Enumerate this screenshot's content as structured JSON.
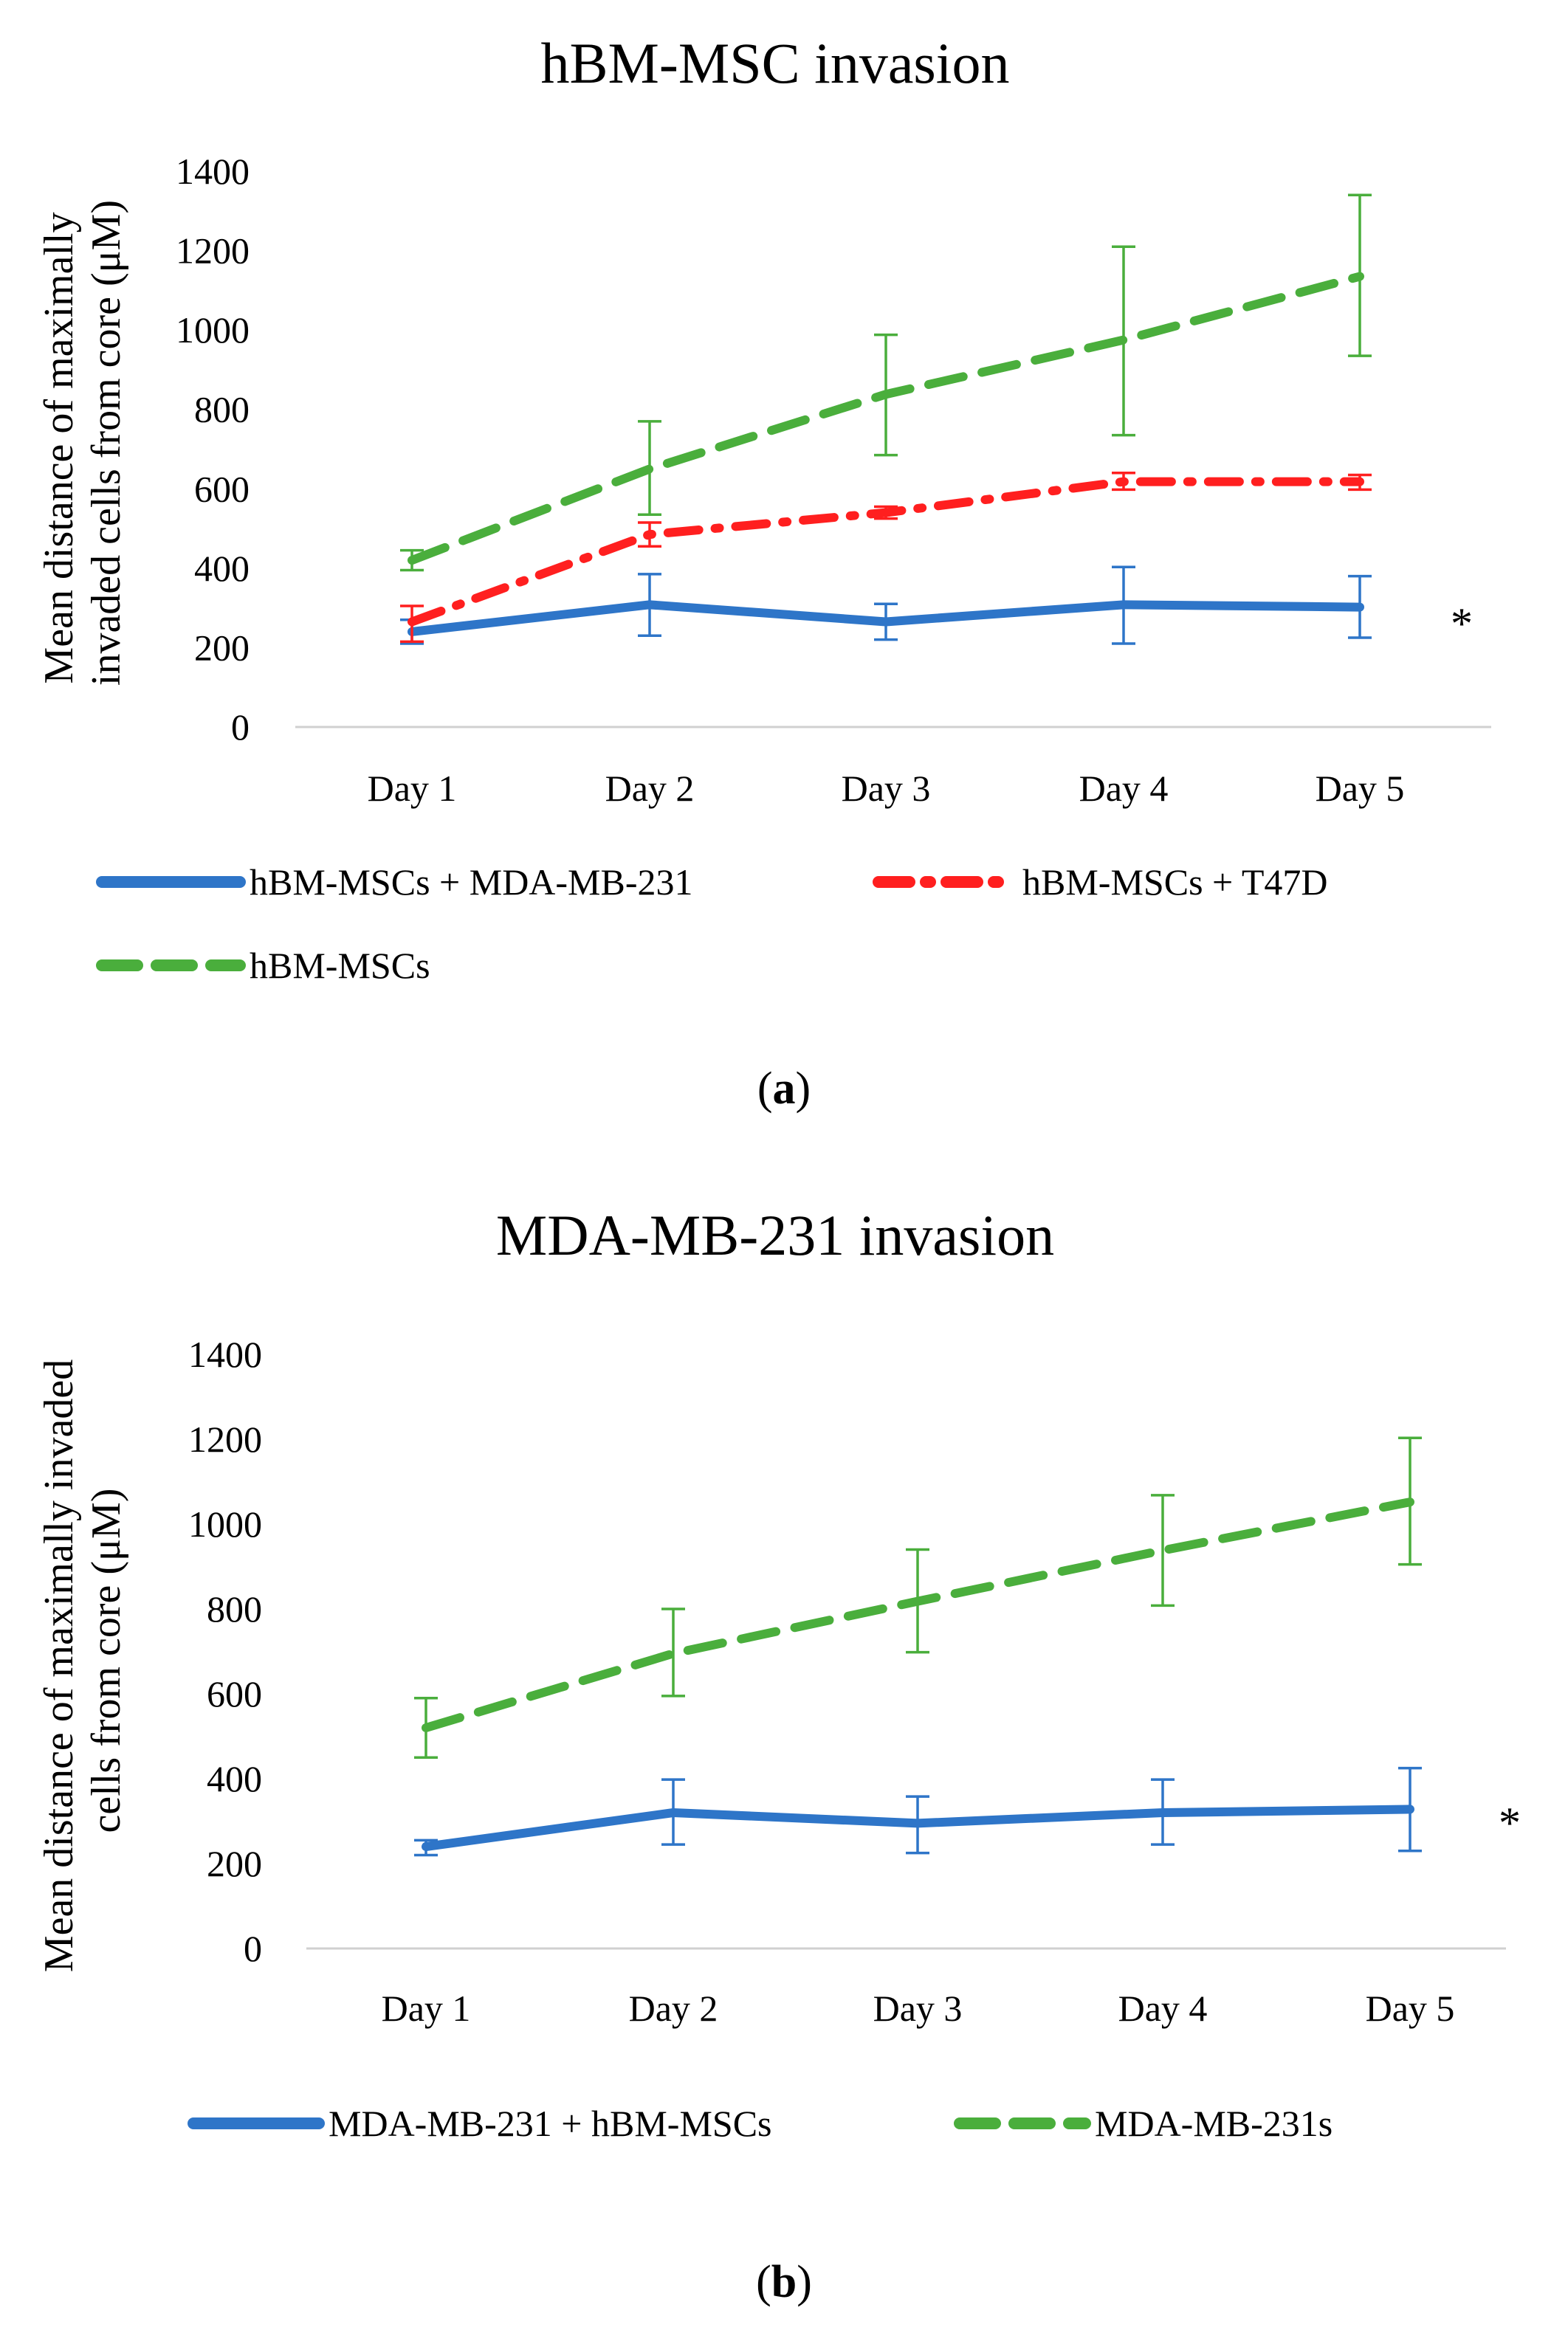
{
  "chart_data": [
    {
      "type": "line",
      "title": "hBM-MSC invasion",
      "ylabel_lines": [
        "Mean distance of maximally",
        "invaded cells from core (μM)"
      ],
      "xlabel": "",
      "categories": [
        "Day 1",
        "Day 2",
        "Day 3",
        "Day 4",
        "Day 5"
      ],
      "ylim": [
        0,
        1400
      ],
      "yticks": [
        "0",
        "200",
        "400",
        "600",
        "800",
        "1000",
        "1200",
        "1400"
      ],
      "grid": false,
      "legend_position": "bottom",
      "series": [
        {
          "name": "hBM-MSCs + MDA-MB-231",
          "values": [
            240,
            308,
            265,
            308,
            302
          ],
          "err_low": [
            210,
            230,
            220,
            210,
            225
          ],
          "err_high": [
            270,
            385,
            310,
            403,
            380
          ],
          "color": "#2e75c8",
          "style": "solid"
        },
        {
          "name": "hBM-MSCs + T47D",
          "values": [
            265,
            485,
            540,
            618,
            618
          ],
          "err_low": [
            215,
            455,
            525,
            598,
            598
          ],
          "err_high": [
            305,
            515,
            555,
            640,
            635
          ],
          "color": "#ff1f1f",
          "style": "dashdot"
        },
        {
          "name": "hBM-MSCs",
          "values": [
            420,
            650,
            838,
            975,
            1135
          ],
          "err_low": [
            395,
            535,
            685,
            735,
            935
          ],
          "err_high": [
            445,
            770,
            988,
            1210,
            1340
          ],
          "color": "#4aae3c",
          "style": "dashed"
        }
      ],
      "annotation": "*",
      "caption_prefix": "(",
      "caption_letter": "a",
      "caption_suffix": ")"
    },
    {
      "type": "line",
      "title": "MDA-MB-231 invasion",
      "ylabel_lines": [
        "Mean distance of maximally invaded",
        "cells from core (μM)"
      ],
      "xlabel": "",
      "categories": [
        "Day 1",
        "Day 2",
        "Day 3",
        "Day 4",
        "Day 5"
      ],
      "ylim": [
        0,
        1400
      ],
      "yticks": [
        "0",
        "200",
        "400",
        "600",
        "800",
        "1000",
        "1200",
        "1400"
      ],
      "grid": false,
      "legend_position": "bottom",
      "series": [
        {
          "name": "MDA-MB-231 + hBM-MSCs",
          "values": [
            240,
            320,
            295,
            320,
            328
          ],
          "err_low": [
            220,
            245,
            225,
            245,
            230
          ],
          "err_high": [
            255,
            398,
            358,
            398,
            425
          ],
          "color": "#2e75c8",
          "style": "solid"
        },
        {
          "name": "MDA-MB-231s",
          "values": [
            520,
            695,
            818,
            938,
            1052
          ],
          "err_low": [
            450,
            595,
            698,
            808,
            905
          ],
          "err_high": [
            590,
            800,
            940,
            1068,
            1203
          ],
          "color": "#4aae3c",
          "style": "dashed"
        }
      ],
      "annotation": "*",
      "caption_prefix": "(",
      "caption_letter": "b",
      "caption_suffix": ")"
    }
  ]
}
